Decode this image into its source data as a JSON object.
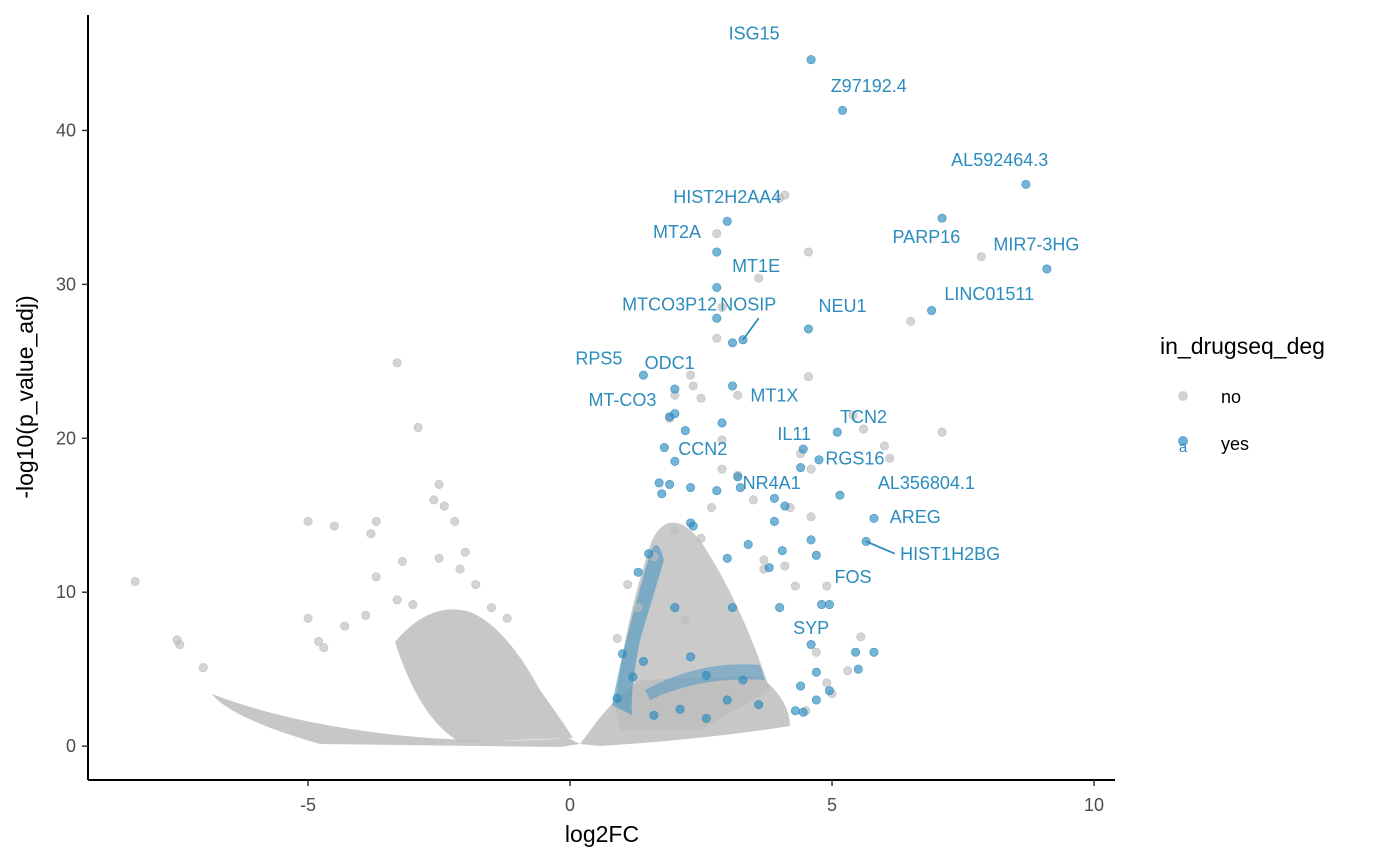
{
  "chart_data": {
    "type": "scatter",
    "xlabel": "log2FC",
    "ylabel": "-log10(p_value_adj)",
    "xlim": [
      -9.2,
      10.4
    ],
    "ylim": [
      -2.2,
      47.5
    ],
    "x_ticks": [
      -5,
      0,
      5,
      10
    ],
    "y_ticks": [
      0,
      10,
      20,
      30,
      40
    ],
    "grid": false,
    "legend": {
      "title": "in_drugseq_deg",
      "position": "right",
      "entries": [
        {
          "label": "no",
          "color": "#bdbdbd"
        },
        {
          "label": "yes",
          "color": "#2b8cbe",
          "key_glyph": "a"
        }
      ]
    },
    "series": [
      {
        "name": "no",
        "color": "#bdbdbd",
        "points": [
          [
            -8.3,
            10.7
          ],
          [
            -7.5,
            6.9
          ],
          [
            -7.45,
            6.6
          ],
          [
            -7.0,
            5.1
          ],
          [
            -5.0,
            14.6
          ],
          [
            -4.5,
            14.3
          ],
          [
            -5.0,
            8.3
          ],
          [
            -3.3,
            24.9
          ],
          [
            -2.9,
            20.7
          ],
          [
            -2.5,
            17.0
          ],
          [
            -2.6,
            16.0
          ],
          [
            -2.4,
            15.6
          ],
          [
            -2.2,
            14.6
          ],
          [
            -3.7,
            14.6
          ],
          [
            -3.8,
            13.8
          ],
          [
            -3.2,
            12.0
          ],
          [
            -2.5,
            12.2
          ],
          [
            -2.1,
            11.5
          ],
          [
            -2.0,
            12.6
          ],
          [
            -3.7,
            11.0
          ],
          [
            -4.3,
            7.8
          ],
          [
            -4.8,
            6.8
          ],
          [
            -4.7,
            6.4
          ],
          [
            -3.9,
            8.5
          ],
          [
            -3.3,
            9.5
          ],
          [
            -3.0,
            9.2
          ],
          [
            -1.8,
            10.5
          ],
          [
            -1.5,
            9.0
          ],
          [
            -1.2,
            8.3
          ],
          [
            4.1,
            35.8
          ],
          [
            4.0,
            35.6
          ],
          [
            2.8,
            33.3
          ],
          [
            4.55,
            32.1
          ],
          [
            3.6,
            30.4
          ],
          [
            2.9,
            28.5
          ],
          [
            7.85,
            31.8
          ],
          [
            6.5,
            27.6
          ],
          [
            2.8,
            26.5
          ],
          [
            4.55,
            24.0
          ],
          [
            2.3,
            24.1
          ],
          [
            2.35,
            23.4
          ],
          [
            2.0,
            22.8
          ],
          [
            2.5,
            22.6
          ],
          [
            3.2,
            22.8
          ],
          [
            5.4,
            21.5
          ],
          [
            5.6,
            20.6
          ],
          [
            7.1,
            20.4
          ],
          [
            1.9,
            21.3
          ],
          [
            4.4,
            19.0
          ],
          [
            4.6,
            18.0
          ],
          [
            6.0,
            19.5
          ],
          [
            6.1,
            18.7
          ],
          [
            2.9,
            19.9
          ],
          [
            2.9,
            18.0
          ],
          [
            3.5,
            16.0
          ],
          [
            3.2,
            17.6
          ],
          [
            2.7,
            15.5
          ],
          [
            2.5,
            13.5
          ],
          [
            4.2,
            15.5
          ],
          [
            4.6,
            14.9
          ],
          [
            3.7,
            12.1
          ],
          [
            4.1,
            11.7
          ],
          [
            3.7,
            11.5
          ],
          [
            4.3,
            10.4
          ],
          [
            4.9,
            10.4
          ],
          [
            4.7,
            6.1
          ],
          [
            5.3,
            4.9
          ],
          [
            5.55,
            7.1
          ],
          [
            4.9,
            4.1
          ],
          [
            4.5,
            2.3
          ],
          [
            5.0,
            3.4
          ],
          [
            2.0,
            14.0
          ],
          [
            1.6,
            12.3
          ],
          [
            1.1,
            10.5
          ],
          [
            1.3,
            9.0
          ],
          [
            2.2,
            8.2
          ],
          [
            0.9,
            7.0
          ]
        ]
      },
      {
        "name": "yes",
        "color": "#2b8cbe",
        "points": [
          [
            4.6,
            44.6
          ],
          [
            5.2,
            41.3
          ],
          [
            8.7,
            36.5
          ],
          [
            7.1,
            34.3
          ],
          [
            3.0,
            34.1
          ],
          [
            2.8,
            32.1
          ],
          [
            9.1,
            31.0
          ],
          [
            2.8,
            29.8
          ],
          [
            6.9,
            28.3
          ],
          [
            2.8,
            27.8
          ],
          [
            4.55,
            27.1
          ],
          [
            3.3,
            26.4
          ],
          [
            3.1,
            26.2
          ],
          [
            1.4,
            24.1
          ],
          [
            3.1,
            23.4
          ],
          [
            2.0,
            23.2
          ],
          [
            1.9,
            21.4
          ],
          [
            2.0,
            21.6
          ],
          [
            2.2,
            20.5
          ],
          [
            2.9,
            21.0
          ],
          [
            5.1,
            20.4
          ],
          [
            4.45,
            19.3
          ],
          [
            1.8,
            19.4
          ],
          [
            2.0,
            18.5
          ],
          [
            4.75,
            18.6
          ],
          [
            4.4,
            18.1
          ],
          [
            3.2,
            17.5
          ],
          [
            3.25,
            16.8
          ],
          [
            1.7,
            17.1
          ],
          [
            1.9,
            17.0
          ],
          [
            2.3,
            16.8
          ],
          [
            1.75,
            16.4
          ],
          [
            2.8,
            16.6
          ],
          [
            3.9,
            16.1
          ],
          [
            5.15,
            16.3
          ],
          [
            4.1,
            15.6
          ],
          [
            5.8,
            14.8
          ],
          [
            2.3,
            14.5
          ],
          [
            2.35,
            14.3
          ],
          [
            3.9,
            14.6
          ],
          [
            4.6,
            13.4
          ],
          [
            5.65,
            13.3
          ],
          [
            1.5,
            12.5
          ],
          [
            3.4,
            13.1
          ],
          [
            4.05,
            12.7
          ],
          [
            3.0,
            12.2
          ],
          [
            4.7,
            12.4
          ],
          [
            3.8,
            11.6
          ],
          [
            1.3,
            11.3
          ],
          [
            4.8,
            9.2
          ],
          [
            4.95,
            9.2
          ],
          [
            2.0,
            9.0
          ],
          [
            3.1,
            9.0
          ],
          [
            4.0,
            9.0
          ],
          [
            4.6,
            6.6
          ],
          [
            5.45,
            6.1
          ],
          [
            5.8,
            6.1
          ],
          [
            5.5,
            5.0
          ],
          [
            4.7,
            4.8
          ],
          [
            4.4,
            3.9
          ],
          [
            4.3,
            2.3
          ],
          [
            4.45,
            2.2
          ],
          [
            4.95,
            3.6
          ],
          [
            4.7,
            3.0
          ],
          [
            1.0,
            6.0
          ],
          [
            1.4,
            5.5
          ],
          [
            1.2,
            4.5
          ],
          [
            2.3,
            5.8
          ],
          [
            2.6,
            4.6
          ],
          [
            3.3,
            4.3
          ],
          [
            0.9,
            3.1
          ],
          [
            2.1,
            2.4
          ],
          [
            3.0,
            3.0
          ],
          [
            3.6,
            2.7
          ],
          [
            1.6,
            2.0
          ],
          [
            2.6,
            1.8
          ]
        ]
      }
    ],
    "annotations": [
      {
        "text": "ISG15",
        "x": 4.0,
        "y": 45.9,
        "anchor": "end"
      },
      {
        "text": "Z97192.4",
        "x": 5.7,
        "y": 42.5,
        "anchor": "middle"
      },
      {
        "text": "AL592464.3",
        "x": 8.2,
        "y": 37.7,
        "anchor": "middle"
      },
      {
        "text": "HIST2H2AA4",
        "x": 3.0,
        "y": 35.3,
        "anchor": "middle"
      },
      {
        "text": "MT2A",
        "x": 2.5,
        "y": 33.0,
        "anchor": "end"
      },
      {
        "text": "PARP16",
        "x": 6.8,
        "y": 32.7,
        "anchor": "middle"
      },
      {
        "text": "MIR7-3HG",
        "x": 8.9,
        "y": 32.2,
        "anchor": "middle"
      },
      {
        "text": "MT1E",
        "x": 3.55,
        "y": 30.8,
        "anchor": "middle"
      },
      {
        "text": "LINC01511",
        "x": 8.0,
        "y": 29.0,
        "anchor": "middle"
      },
      {
        "text": "MTCO3P12",
        "x": 1.9,
        "y": 28.3,
        "anchor": "middle"
      },
      {
        "text": "NOSIP",
        "x": 3.4,
        "y": 28.3,
        "anchor": "middle"
      },
      {
        "text": "NEU1",
        "x": 5.2,
        "y": 28.2,
        "anchor": "middle"
      },
      {
        "text": "RPS5",
        "x": 1.0,
        "y": 24.8,
        "anchor": "end"
      },
      {
        "text": "ODC1",
        "x": 1.9,
        "y": 24.5,
        "anchor": "middle"
      },
      {
        "text": "MT1X",
        "x": 3.9,
        "y": 22.4,
        "anchor": "middle"
      },
      {
        "text": "MT-CO3",
        "x": 1.0,
        "y": 22.1,
        "anchor": "middle"
      },
      {
        "text": "TCN2",
        "x": 5.6,
        "y": 21.0,
        "anchor": "middle"
      },
      {
        "text": "IL11",
        "x": 4.6,
        "y": 19.9,
        "anchor": "end"
      },
      {
        "text": "CCN2",
        "x": 3.0,
        "y": 18.9,
        "anchor": "end"
      },
      {
        "text": "RGS16",
        "x": 6.0,
        "y": 18.3,
        "anchor": "end"
      },
      {
        "text": "NR4A1",
        "x": 4.4,
        "y": 16.7,
        "anchor": "end"
      },
      {
        "text": "AL356804.1",
        "x": 6.8,
        "y": 16.7,
        "anchor": "middle"
      },
      {
        "text": "AREG",
        "x": 6.1,
        "y": 14.5,
        "anchor": "start"
      },
      {
        "text": "HIST1H2BG",
        "x": 6.3,
        "y": 12.1,
        "anchor": "start"
      },
      {
        "text": "FOS",
        "x": 5.4,
        "y": 10.6,
        "anchor": "middle"
      },
      {
        "text": "SYP",
        "x": 4.6,
        "y": 7.3,
        "anchor": "middle"
      }
    ],
    "leader_lines": [
      {
        "from": [
          3.3,
          26.4
        ],
        "to": [
          3.6,
          27.8
        ]
      },
      {
        "from": [
          5.65,
          13.3
        ],
        "to": [
          6.2,
          12.5
        ]
      }
    ]
  }
}
